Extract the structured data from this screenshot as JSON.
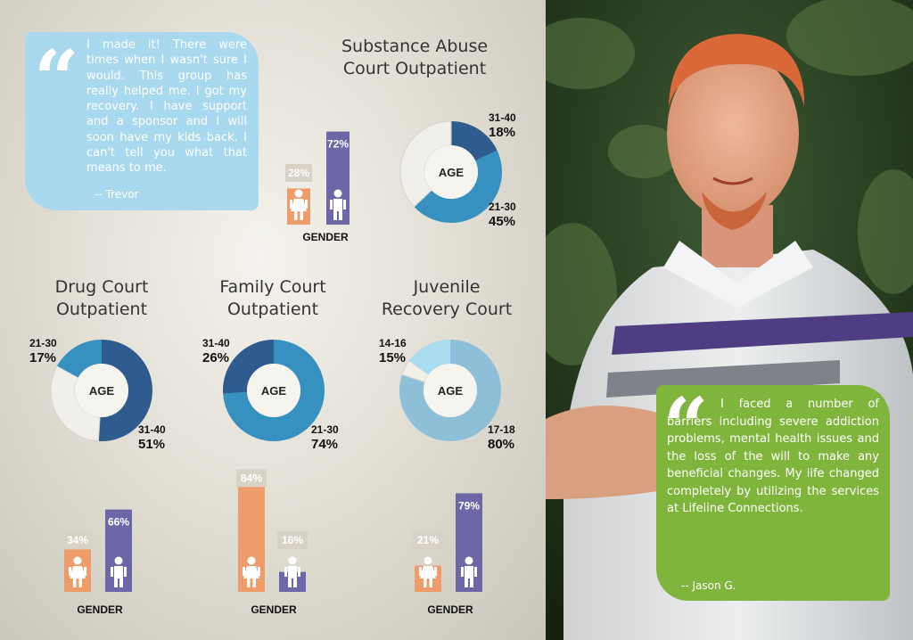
{
  "quotes": {
    "trevor": {
      "text": "I made it! There were times when I wasn't sure I would. This group has really helped me. I got my recovery. I have support and a sponsor and I will soon have my kids back. I can't tell you what that means to me.",
      "author": "-- Trevor",
      "color": "#a8d9ef"
    },
    "jason": {
      "text": "I faced a number of barriers including severe addiction problems, mental health issues and the loss of the will to make any beneficial changes. My life changed completely by utilizing the services at Lifeline Connections.",
      "author": "-- Jason G.",
      "color": "#7fb53c"
    }
  },
  "icons": [
    "quote-mark-icon",
    "female-figure-icon",
    "male-figure-icon"
  ],
  "colors": {
    "female": "#ee9d6a",
    "female_bg": "#d8d2c6",
    "male": "#6d67a7",
    "donut_dark": "#2e5c8e",
    "donut_mid": "#3690c0",
    "donut_light": "#f0efe9",
    "donut_pale": "#8ebfd8"
  },
  "chart_data": [
    {
      "type": "pie",
      "id": "substance",
      "title_lines": [
        "Substance Abuse",
        "Court Outpatient"
      ],
      "center_label": "AGE",
      "segments": [
        {
          "category": "31-40",
          "value": 18,
          "label": "18%"
        },
        {
          "category": "21-30",
          "value": 45,
          "label": "45%"
        },
        {
          "category": "",
          "value": 37,
          "label": ""
        }
      ],
      "gender": {
        "label": "GENDER",
        "female": 28,
        "male": 72,
        "female_label": "28%",
        "male_label": "72%"
      }
    },
    {
      "type": "pie",
      "id": "drug",
      "title_lines": [
        "Drug Court",
        "Outpatient"
      ],
      "center_label": "AGE",
      "segments": [
        {
          "category": "21-30",
          "value": 17,
          "label": "17%"
        },
        {
          "category": "31-40",
          "value": 51,
          "label": "51%"
        },
        {
          "category": "",
          "value": 32,
          "label": ""
        }
      ],
      "gender": {
        "label": "GENDER",
        "female": 34,
        "male": 66,
        "female_label": "34%",
        "male_label": "66%"
      }
    },
    {
      "type": "pie",
      "id": "family",
      "title_lines": [
        "Family Court",
        "Outpatient"
      ],
      "center_label": "AGE",
      "segments": [
        {
          "category": "31-40",
          "value": 26,
          "label": "26%"
        },
        {
          "category": "21-30",
          "value": 74,
          "label": "74%"
        }
      ],
      "gender": {
        "label": "GENDER",
        "female": 84,
        "male": 16,
        "female_label": "84%",
        "male_label": "16%"
      }
    },
    {
      "type": "pie",
      "id": "juvenile",
      "title_lines": [
        "Juvenile",
        "Recovery Court"
      ],
      "center_label": "AGE",
      "segments": [
        {
          "category": "14-16",
          "value": 15,
          "label": "15%"
        },
        {
          "category": "17-18",
          "value": 80,
          "label": "80%"
        },
        {
          "category": "",
          "value": 5,
          "label": ""
        }
      ],
      "gender": {
        "label": "GENDER",
        "female": 21,
        "male": 79,
        "female_label": "21%",
        "male_label": "79%"
      }
    }
  ]
}
